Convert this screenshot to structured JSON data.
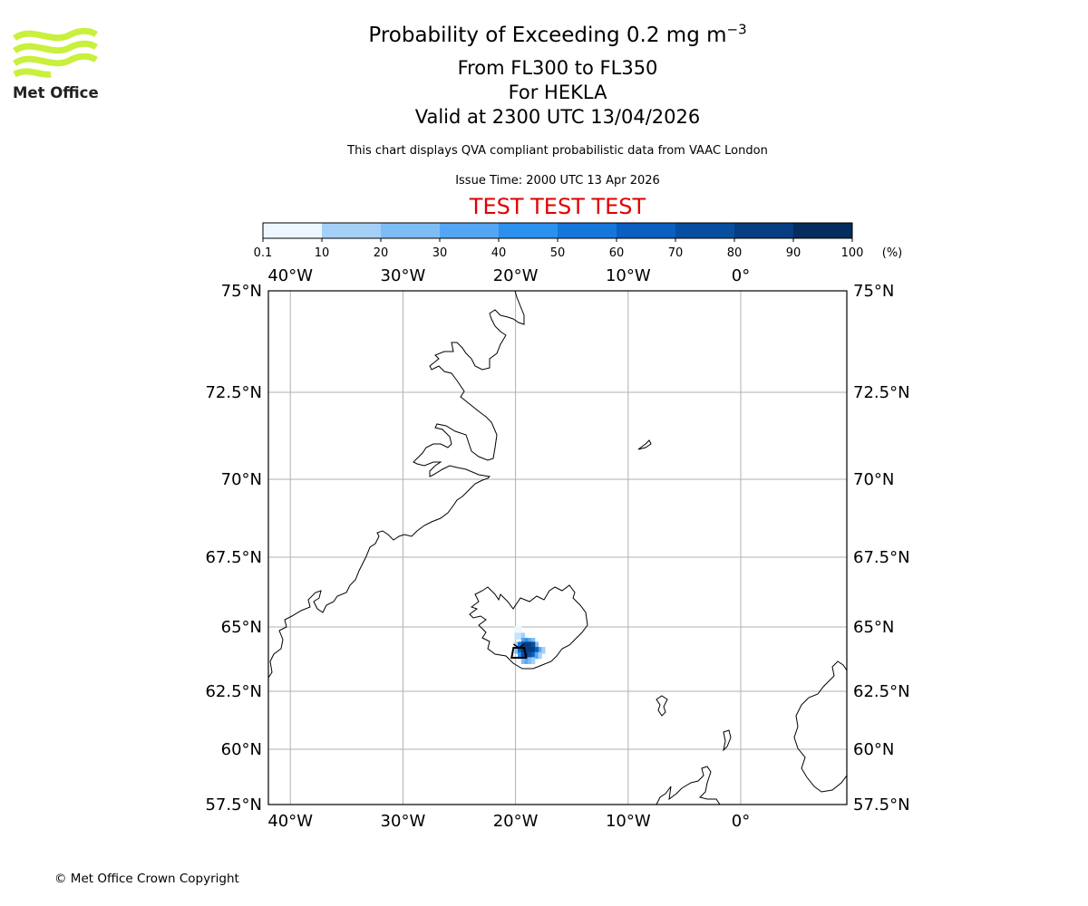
{
  "header": {
    "logo_text": "Met Office",
    "title_prefix": "Probability of Exceeding 0.2 mg m",
    "title_exponent": "−3",
    "flight_levels": "From FL300 to FL350",
    "volcano_line": "For HEKLA",
    "valid_line": "Valid at 2300 UTC 13/04/2026",
    "description": "This chart displays QVA compliant probabilistic data from VAAC London",
    "issue_time": "Issue Time: 2000 UTC 13 Apr 2026",
    "test_banner": "TEST TEST TEST"
  },
  "colorbar": {
    "tick_labels": [
      "0.1",
      "10",
      "20",
      "30",
      "40",
      "50",
      "60",
      "70",
      "80",
      "90",
      "100"
    ],
    "unit": "(%)",
    "colors": [
      "#eef6ff",
      "#c8e2fb",
      "#a4d0f8",
      "#7dbcf5",
      "#52a6f3",
      "#2b90ee",
      "#1577dc",
      "#0a5fc0",
      "#084ea0",
      "#063d80",
      "#042c5c"
    ]
  },
  "map": {
    "lon_labels": [
      "40°W",
      "30°W",
      "20°W",
      "10°W",
      "0°"
    ],
    "lon_values": [
      -40,
      -30,
      -20,
      -10,
      0
    ],
    "lat_labels": [
      "75°N",
      "72.5°N",
      "70°N",
      "67.5°N",
      "65°N",
      "62.5°N",
      "60°N",
      "57.5°N"
    ],
    "lat_values": [
      75,
      72.5,
      70,
      67.5,
      65,
      62.5,
      60,
      57.5
    ],
    "volcano_name": "HEKLA",
    "volcano_location": {
      "lon": -19.7,
      "lat": 63.98
    },
    "plume_cells": [
      {
        "lon": -20.1,
        "lat": 64.9,
        "prob": 5
      },
      {
        "lon": -19.8,
        "lat": 64.9,
        "prob": 8
      },
      {
        "lon": -20.1,
        "lat": 64.65,
        "prob": 12
      },
      {
        "lon": -19.8,
        "lat": 64.65,
        "prob": 18
      },
      {
        "lon": -19.5,
        "lat": 64.65,
        "prob": 25
      },
      {
        "lon": -19.5,
        "lat": 64.45,
        "prob": 45
      },
      {
        "lon": -19.2,
        "lat": 64.45,
        "prob": 55
      },
      {
        "lon": -18.9,
        "lat": 64.45,
        "prob": 40
      },
      {
        "lon": -18.6,
        "lat": 64.45,
        "prob": 35
      },
      {
        "lon": -18.3,
        "lat": 64.3,
        "prob": 30
      },
      {
        "lon": -20.1,
        "lat": 64.3,
        "prob": 22
      },
      {
        "lon": -19.8,
        "lat": 64.3,
        "prob": 60
      },
      {
        "lon": -19.5,
        "lat": 64.3,
        "prob": 85
      },
      {
        "lon": -19.2,
        "lat": 64.3,
        "prob": 95
      },
      {
        "lon": -18.9,
        "lat": 64.3,
        "prob": 92
      },
      {
        "lon": -18.6,
        "lat": 64.3,
        "prob": 82
      },
      {
        "lon": -18.0,
        "lat": 64.1,
        "prob": 45
      },
      {
        "lon": -17.7,
        "lat": 64.1,
        "prob": 25
      },
      {
        "lon": -20.1,
        "lat": 64.1,
        "prob": 30
      },
      {
        "lon": -19.8,
        "lat": 64.1,
        "prob": 75
      },
      {
        "lon": -19.5,
        "lat": 64.1,
        "prob": 97
      },
      {
        "lon": -19.2,
        "lat": 64.1,
        "prob": 98
      },
      {
        "lon": -18.9,
        "lat": 64.1,
        "prob": 96
      },
      {
        "lon": -18.6,
        "lat": 64.1,
        "prob": 90
      },
      {
        "lon": -18.3,
        "lat": 64.1,
        "prob": 70
      },
      {
        "lon": -19.8,
        "lat": 63.9,
        "prob": 55
      },
      {
        "lon": -19.5,
        "lat": 63.9,
        "prob": 88
      },
      {
        "lon": -19.2,
        "lat": 63.9,
        "prob": 92
      },
      {
        "lon": -18.9,
        "lat": 63.9,
        "prob": 85
      },
      {
        "lon": -18.6,
        "lat": 63.9,
        "prob": 72
      },
      {
        "lon": -18.3,
        "lat": 63.9,
        "prob": 48
      },
      {
        "lon": -18.0,
        "lat": 63.9,
        "prob": 25
      },
      {
        "lon": -19.5,
        "lat": 63.7,
        "prob": 35
      },
      {
        "lon": -19.2,
        "lat": 63.7,
        "prob": 40
      },
      {
        "lon": -18.9,
        "lat": 63.7,
        "prob": 30
      },
      {
        "lon": -18.6,
        "lat": 63.7,
        "prob": 20
      }
    ]
  },
  "footer": {
    "copyright": "© Met Office Crown Copyright"
  }
}
